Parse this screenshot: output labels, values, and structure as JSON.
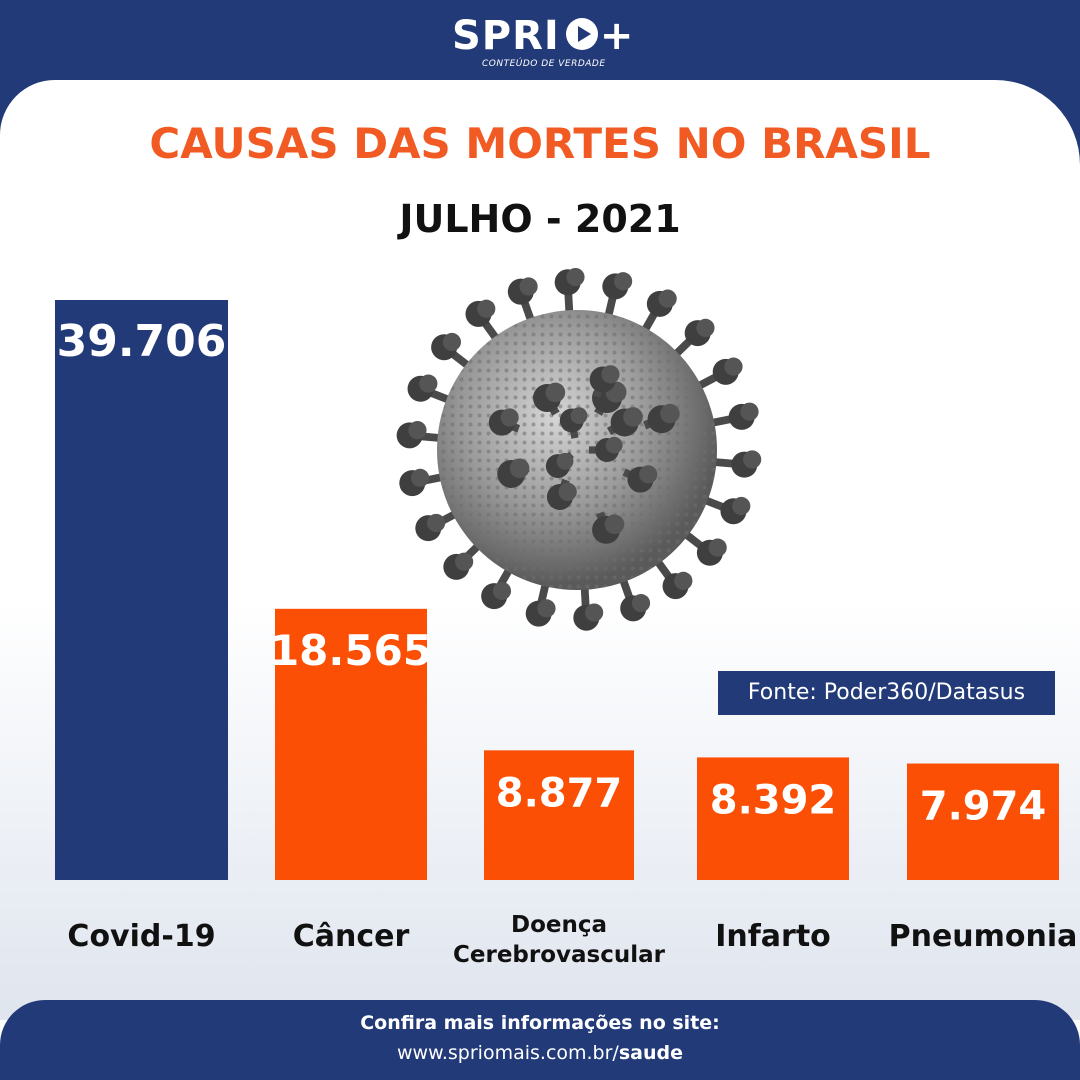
{
  "brand": {
    "name": "SPRIO+",
    "name_text": "SPRI",
    "tagline": "CONTEÚDO DE VERDADE"
  },
  "title": "CAUSAS DAS MORTES NO BRASIL",
  "subtitle": "JULHO - 2021",
  "illustration": "coronavirus-image",
  "source": "Fonte: Poder360/Datasus",
  "footer": {
    "line1": "Confira mais informações no site:",
    "url_prefix": "www.spriomais.com.br/",
    "url_bold": "saude"
  },
  "colors": {
    "navy": "#223a78",
    "orange": "#f15a22",
    "bar_orange": "#fb4f06"
  },
  "chart_data": {
    "type": "bar",
    "title": "CAUSAS DAS MORTES NO BRASIL",
    "subtitle": "JULHO - 2021",
    "categories": [
      "Covid-19",
      "Câncer",
      "Doença Cerebrovascular",
      "Infarto",
      "Pneumonia"
    ],
    "category_lines": [
      [
        "Covid-19"
      ],
      [
        "Câncer"
      ],
      [
        "Doença",
        "Cerebrovascular"
      ],
      [
        "Infarto"
      ],
      [
        "Pneumonia"
      ]
    ],
    "values": [
      39706,
      18565,
      8877,
      8392,
      7974
    ],
    "value_labels": [
      "39.706",
      "18.565",
      "8.877",
      "8.392",
      "7.974"
    ],
    "bar_colors": [
      "#223a78",
      "#fb4f06",
      "#fb4f06",
      "#fb4f06",
      "#fb4f06"
    ],
    "ylim": [
      0,
      39706
    ],
    "grid": false,
    "legend": "none"
  }
}
